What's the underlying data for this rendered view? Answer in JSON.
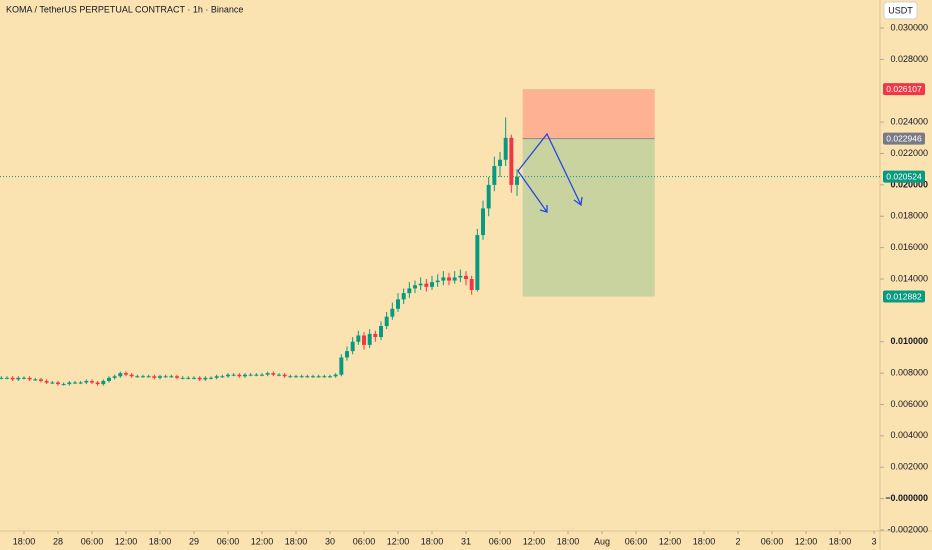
{
  "chart_data": {
    "type": "candlestick",
    "title": "KOMA / TetherUS PERPETUAL CONTRACT · 1h · Binance",
    "currency_button": "USDT",
    "colors": {
      "up": "#089981",
      "down": "#f23645",
      "background": "#fbe3b1"
    },
    "x": [
      14,
      15,
      16,
      17,
      18,
      19,
      20,
      21,
      22,
      23,
      24,
      25,
      26,
      27,
      28,
      29,
      30,
      31,
      32,
      33,
      34,
      35,
      36,
      37,
      38,
      39,
      40,
      41,
      42,
      43,
      44,
      45,
      46,
      47,
      48,
      49,
      50,
      51,
      52,
      53,
      54,
      55,
      56,
      57,
      58,
      59,
      60,
      61,
      62,
      63,
      64,
      65,
      66,
      67,
      68,
      69,
      70,
      71,
      72,
      73,
      74,
      75,
      76,
      77,
      78,
      79,
      80,
      81,
      82,
      83,
      84,
      85,
      86,
      87,
      88,
      89,
      90,
      91,
      92,
      93,
      94,
      95,
      96,
      97,
      98,
      99,
      100,
      101,
      102,
      103,
      104,
      105
    ],
    "open": [
      0.0077,
      0.0077,
      0.0077,
      0.0076,
      0.0077,
      0.0077,
      0.0076,
      0.0076,
      0.0075,
      0.0074,
      0.0074,
      0.0073,
      0.0073,
      0.0074,
      0.0074,
      0.0074,
      0.0075,
      0.0074,
      0.0073,
      0.0075,
      0.0077,
      0.0078,
      0.008,
      0.0079,
      0.0078,
      0.0078,
      0.0078,
      0.0078,
      0.0077,
      0.0078,
      0.0078,
      0.0078,
      0.0077,
      0.0077,
      0.0077,
      0.0077,
      0.0076,
      0.0077,
      0.0077,
      0.0078,
      0.0078,
      0.0079,
      0.0079,
      0.0078,
      0.0079,
      0.0079,
      0.0079,
      0.0079,
      0.008,
      0.0079,
      0.0079,
      0.0078,
      0.0078,
      0.0078,
      0.0078,
      0.0078,
      0.0078,
      0.0078,
      0.0078,
      0.0078,
      0.0079,
      0.009,
      0.0094,
      0.01,
      0.0104,
      0.0098,
      0.0105,
      0.0103,
      0.011,
      0.0116,
      0.0121,
      0.0127,
      0.0131,
      0.0134,
      0.0136,
      0.0137,
      0.0135,
      0.0138,
      0.0139,
      0.0141,
      0.0139,
      0.0141,
      0.0142,
      0.014,
      0.0133,
      0.0168,
      0.0185,
      0.02,
      0.0212,
      0.0216,
      0.023,
      0.02
    ],
    "high": [
      0.0078,
      0.0078,
      0.0078,
      0.0078,
      0.0078,
      0.0078,
      0.0077,
      0.0077,
      0.0076,
      0.0075,
      0.0075,
      0.0074,
      0.0075,
      0.0075,
      0.0075,
      0.0076,
      0.0076,
      0.0075,
      0.0076,
      0.0078,
      0.0079,
      0.0081,
      0.0081,
      0.008,
      0.0079,
      0.0079,
      0.0079,
      0.0079,
      0.0079,
      0.0079,
      0.0079,
      0.0079,
      0.0078,
      0.0078,
      0.0078,
      0.0078,
      0.0078,
      0.0078,
      0.0079,
      0.0079,
      0.008,
      0.008,
      0.008,
      0.008,
      0.008,
      0.008,
      0.008,
      0.0081,
      0.0081,
      0.008,
      0.008,
      0.0079,
      0.0079,
      0.0079,
      0.0079,
      0.0079,
      0.0079,
      0.0079,
      0.0079,
      0.008,
      0.0092,
      0.0097,
      0.0103,
      0.0107,
      0.0106,
      0.0108,
      0.0107,
      0.0113,
      0.0119,
      0.0125,
      0.0131,
      0.0134,
      0.0138,
      0.0139,
      0.0141,
      0.014,
      0.0142,
      0.0143,
      0.0145,
      0.0144,
      0.0145,
      0.0146,
      0.0145,
      0.0142,
      0.0172,
      0.019,
      0.0205,
      0.0218,
      0.0221,
      0.0243,
      0.0232,
      0.021
    ],
    "low": [
      0.0076,
      0.0076,
      0.0075,
      0.0075,
      0.0076,
      0.0075,
      0.0075,
      0.0074,
      0.0073,
      0.0073,
      0.0072,
      0.0072,
      0.0072,
      0.0073,
      0.0073,
      0.0073,
      0.0073,
      0.0072,
      0.0072,
      0.0074,
      0.0076,
      0.0077,
      0.0078,
      0.0077,
      0.0077,
      0.0077,
      0.0077,
      0.0076,
      0.0076,
      0.0077,
      0.0077,
      0.0076,
      0.0076,
      0.0076,
      0.0076,
      0.0075,
      0.0075,
      0.0076,
      0.0076,
      0.0077,
      0.0077,
      0.0078,
      0.0077,
      0.0077,
      0.0078,
      0.0078,
      0.0078,
      0.0078,
      0.0078,
      0.0078,
      0.0077,
      0.0077,
      0.0077,
      0.0077,
      0.0077,
      0.0077,
      0.0077,
      0.0077,
      0.0077,
      0.0077,
      0.0078,
      0.0088,
      0.0092,
      0.0098,
      0.0095,
      0.0096,
      0.01,
      0.0101,
      0.0108,
      0.0114,
      0.0119,
      0.0124,
      0.0128,
      0.0131,
      0.0133,
      0.0132,
      0.0133,
      0.0135,
      0.0136,
      0.0136,
      0.0137,
      0.0138,
      0.0136,
      0.013,
      0.0132,
      0.0165,
      0.018,
      0.0196,
      0.0205,
      0.0212,
      0.0195,
      0.0193
    ],
    "close": [
      0.0077,
      0.0077,
      0.0076,
      0.0077,
      0.0077,
      0.0076,
      0.0076,
      0.0075,
      0.0074,
      0.0074,
      0.0073,
      0.0073,
      0.0074,
      0.0074,
      0.0074,
      0.0075,
      0.0074,
      0.0073,
      0.0075,
      0.0077,
      0.0078,
      0.008,
      0.0079,
      0.0078,
      0.0078,
      0.0078,
      0.0078,
      0.0077,
      0.0078,
      0.0078,
      0.0078,
      0.0077,
      0.0077,
      0.0077,
      0.0077,
      0.0076,
      0.0077,
      0.0077,
      0.0078,
      0.0078,
      0.0079,
      0.0079,
      0.0078,
      0.0079,
      0.0079,
      0.0079,
      0.0079,
      0.008,
      0.0079,
      0.0079,
      0.0078,
      0.0078,
      0.0078,
      0.0078,
      0.0078,
      0.0078,
      0.0078,
      0.0078,
      0.0078,
      0.0079,
      0.009,
      0.0094,
      0.01,
      0.0104,
      0.0098,
      0.0105,
      0.0103,
      0.011,
      0.0116,
      0.0121,
      0.0127,
      0.0131,
      0.0134,
      0.0136,
      0.0137,
      0.0135,
      0.0138,
      0.0139,
      0.0141,
      0.0139,
      0.0141,
      0.0142,
      0.014,
      0.0133,
      0.0168,
      0.0185,
      0.02,
      0.0212,
      0.0216,
      0.023,
      0.02,
      0.020524
    ],
    "position": {
      "x": [
        106,
        129.3
      ],
      "stop": 0.026107,
      "entry": 0.022946,
      "target": 0.012882
    },
    "last_price": 0.020524,
    "xlim": [
      13.77,
      169.05
    ],
    "xticks": [
      {
        "value": 18,
        "label": "18:00"
      },
      {
        "value": 24,
        "label": "28"
      },
      {
        "value": 30,
        "label": "06:00"
      },
      {
        "value": 36,
        "label": "12:00"
      },
      {
        "value": 42,
        "label": "18:00"
      },
      {
        "value": 48,
        "label": "29"
      },
      {
        "value": 54,
        "label": "06:00"
      },
      {
        "value": 60,
        "label": "12:00"
      },
      {
        "value": 66,
        "label": "18:00"
      },
      {
        "value": 72,
        "label": "30"
      },
      {
        "value": 78,
        "label": "06:00"
      },
      {
        "value": 84,
        "label": "12:00"
      },
      {
        "value": 90,
        "label": "18:00"
      },
      {
        "value": 96,
        "label": "31"
      },
      {
        "value": 102,
        "label": "06:00"
      },
      {
        "value": 108,
        "label": "12:00"
      },
      {
        "value": 114,
        "label": "18:00"
      },
      {
        "value": 120,
        "label": "Aug"
      },
      {
        "value": 126,
        "label": "06:00"
      },
      {
        "value": 132,
        "label": "12:00"
      },
      {
        "value": 138,
        "label": "18:00"
      },
      {
        "value": 144,
        "label": "2"
      },
      {
        "value": 150,
        "label": "06:00"
      },
      {
        "value": 156,
        "label": "12:00"
      },
      {
        "value": 162,
        "label": "18:00"
      },
      {
        "value": 168,
        "label": "3"
      }
    ],
    "ylim": [
      -0.002065,
      0.031786
    ],
    "yticks": [
      {
        "value": 0.03,
        "label": "0.030000"
      },
      {
        "value": 0.028,
        "label": "0.028000"
      },
      {
        "value": 0.024,
        "label": "0.024000"
      },
      {
        "value": 0.022,
        "label": "0.022000"
      },
      {
        "value": 0.02,
        "label": "0.020000"
      },
      {
        "value": 0.018,
        "label": "0.018000"
      },
      {
        "value": 0.016,
        "label": "0.016000"
      },
      {
        "value": 0.014,
        "label": "0.014000"
      },
      {
        "value": 0.01,
        "label": "0.010000"
      },
      {
        "value": 0.008,
        "label": "0.008000"
      },
      {
        "value": 0.006,
        "label": "0.006000"
      },
      {
        "value": 0.004,
        "label": "0.004000"
      },
      {
        "value": 0.002,
        "label": "0.002000"
      },
      {
        "value": 0,
        "label": "−0.000000"
      },
      {
        "value": -0.002,
        "label": "-0.002000"
      }
    ]
  }
}
